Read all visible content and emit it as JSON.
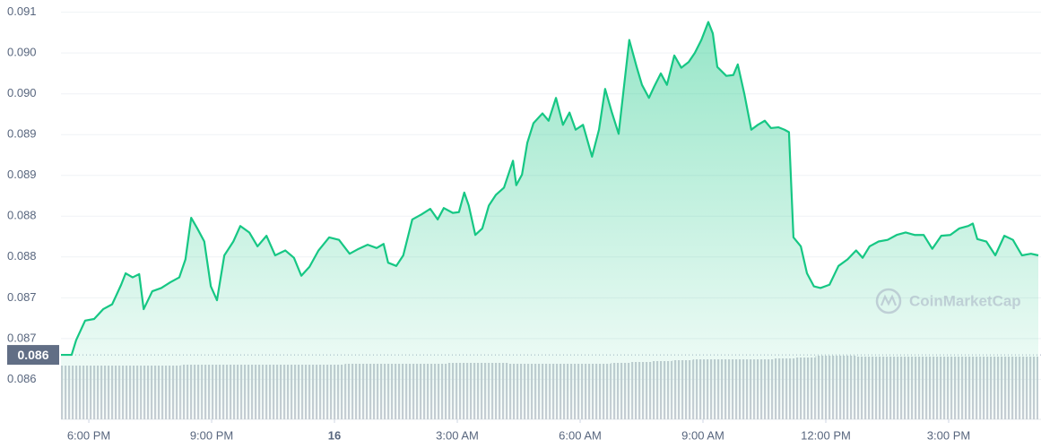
{
  "chart_data": {
    "type": "area",
    "color": "#16c784",
    "grid": true,
    "watermark": "CoinMarketCap",
    "xlim": [
      17.32,
      41.19
    ],
    "xticks": [
      {
        "value": 18,
        "label": "6:00 PM"
      },
      {
        "value": 21,
        "label": "9:00 PM"
      },
      {
        "value": 24,
        "label": "16"
      },
      {
        "value": 27,
        "label": "3:00 AM"
      },
      {
        "value": 30,
        "label": "6:00 AM"
      },
      {
        "value": 33,
        "label": "9:00 AM"
      },
      {
        "value": 36,
        "label": "12:00 PM"
      },
      {
        "value": 39,
        "label": "3:00 PM"
      }
    ],
    "ylim": [
      0.08601,
      0.09115
    ],
    "yticks": [
      0.091,
      {
        "value": 0.0905,
        "label": "0.090"
      },
      {
        "value": 0.09,
        "label": "0.090"
      },
      {
        "value": 0.0895,
        "label": "0.089"
      },
      {
        "value": 0.089,
        "label": "0.089"
      },
      {
        "value": 0.0885,
        "label": "0.088"
      },
      {
        "value": 0.088,
        "label": "0.088"
      },
      {
        "value": 0.0875,
        "label": "0.087"
      },
      {
        "value": 0.087,
        "label": "0.087"
      },
      {
        "value": 0.0865,
        "label": "0.086"
      }
    ],
    "reference_price": {
      "value": 0.0868,
      "label": "0.086"
    },
    "x": [
      17.32,
      17.58,
      17.69,
      17.91,
      18.13,
      18.35,
      18.57,
      18.79,
      18.9,
      19.07,
      19.23,
      19.34,
      19.55,
      19.77,
      19.99,
      20.21,
      20.36,
      20.5,
      20.65,
      20.82,
      20.98,
      21.13,
      21.31,
      21.53,
      21.7,
      21.92,
      22.12,
      22.34,
      22.55,
      22.8,
      23.01,
      23.19,
      23.39,
      23.61,
      23.87,
      24.11,
      24.37,
      24.59,
      24.81,
      25.03,
      25.2,
      25.31,
      25.51,
      25.68,
      25.9,
      26.12,
      26.34,
      26.52,
      26.67,
      26.89,
      27.04,
      27.17,
      27.28,
      27.44,
      27.61,
      27.77,
      27.94,
      28.14,
      28.36,
      28.44,
      28.58,
      28.71,
      28.86,
      29.08,
      29.23,
      29.41,
      29.58,
      29.74,
      29.89,
      30.07,
      30.29,
      30.46,
      30.61,
      30.77,
      30.94,
      31.2,
      31.38,
      31.51,
      31.68,
      31.81,
      31.97,
      32.12,
      32.3,
      32.47,
      32.65,
      32.8,
      32.96,
      33.13,
      33.24,
      33.35,
      33.57,
      33.74,
      33.85,
      34.01,
      34.18,
      34.34,
      34.51,
      34.66,
      34.84,
      34.99,
      35.1,
      35.21,
      35.39,
      35.54,
      35.71,
      35.87,
      36.09,
      36.31,
      36.53,
      36.74,
      36.9,
      37.07,
      37.29,
      37.51,
      37.73,
      37.95,
      38.17,
      38.39,
      38.6,
      38.82,
      39.04,
      39.26,
      39.48,
      39.59,
      39.7,
      39.92,
      40.14,
      40.36,
      40.57,
      40.79,
      41.01,
      41.19
    ],
    "values": [
      0.0868,
      0.0868,
      0.08698,
      0.08722,
      0.08724,
      0.08736,
      0.08742,
      0.08766,
      0.0878,
      0.08775,
      0.08779,
      0.08736,
      0.08758,
      0.08762,
      0.08769,
      0.08775,
      0.08797,
      0.08848,
      0.08835,
      0.08819,
      0.08764,
      0.08747,
      0.08802,
      0.08819,
      0.08838,
      0.0883,
      0.08813,
      0.08826,
      0.08802,
      0.08808,
      0.08799,
      0.08777,
      0.08788,
      0.08808,
      0.08824,
      0.08821,
      0.08804,
      0.0881,
      0.08815,
      0.08811,
      0.08816,
      0.08793,
      0.08789,
      0.08802,
      0.08846,
      0.08852,
      0.08859,
      0.08846,
      0.0886,
      0.08854,
      0.08855,
      0.08879,
      0.08863,
      0.08827,
      0.08835,
      0.08863,
      0.08876,
      0.08885,
      0.08918,
      0.08888,
      0.08901,
      0.0894,
      0.08964,
      0.08976,
      0.08967,
      0.08995,
      0.08962,
      0.08977,
      0.08956,
      0.08962,
      0.08923,
      0.08956,
      0.09006,
      0.08978,
      0.08951,
      0.09066,
      0.09033,
      0.09011,
      0.08995,
      0.09009,
      0.09025,
      0.09011,
      0.09047,
      0.09032,
      0.09039,
      0.0905,
      0.09066,
      0.09088,
      0.09074,
      0.09033,
      0.09022,
      0.09023,
      0.09036,
      0.09,
      0.08956,
      0.08962,
      0.08967,
      0.08958,
      0.08959,
      0.08956,
      0.08953,
      0.08824,
      0.08813,
      0.0878,
      0.08764,
      0.08762,
      0.08766,
      0.08789,
      0.08797,
      0.08808,
      0.08799,
      0.08813,
      0.08819,
      0.08821,
      0.08827,
      0.0883,
      0.08827,
      0.08827,
      0.0881,
      0.08826,
      0.08827,
      0.08835,
      0.08838,
      0.08841,
      0.08822,
      0.08819,
      0.08802,
      0.08826,
      0.08821,
      0.08802,
      0.08804,
      0.08802
    ],
    "volume": {
      "color": "#c3c8d1",
      "vlim": [
        0,
        100
      ],
      "x": [
        17.5,
        18,
        18.5,
        19,
        19.5,
        20,
        20.5,
        21,
        21.5,
        22,
        22.5,
        23,
        23.5,
        24,
        24.5,
        25,
        25.5,
        26,
        26.5,
        27,
        27.5,
        28,
        28.5,
        29,
        29.5,
        30,
        30.5,
        31,
        31.5,
        32,
        32.5,
        33,
        33.5,
        34,
        34.5,
        35,
        35.5,
        36,
        36.5,
        37,
        37.5,
        38,
        38.5,
        39,
        39.5,
        40,
        40.5,
        41
      ],
      "values": [
        60,
        60,
        60,
        60,
        60,
        60,
        61,
        61,
        61,
        61,
        61,
        61,
        61,
        61,
        62,
        62,
        62,
        62,
        62,
        63,
        63,
        63,
        62,
        62,
        62,
        62,
        62,
        63,
        64,
        65,
        66,
        67,
        67,
        67,
        67,
        68,
        69,
        71,
        71,
        70,
        70,
        70,
        70,
        70,
        70,
        70,
        70,
        70
      ]
    }
  }
}
